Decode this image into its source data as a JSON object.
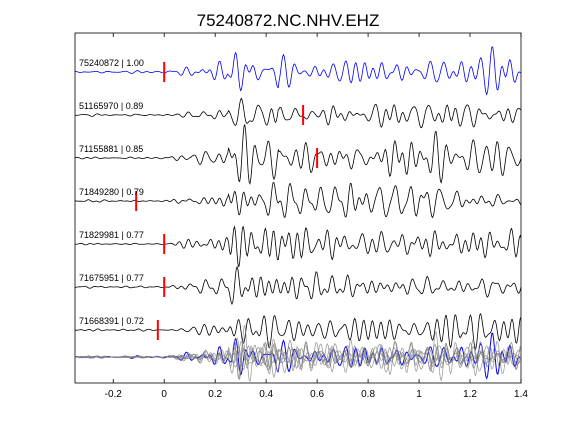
{
  "chart_data": {
    "type": "line",
    "title": "75240872.NC.NHV.EHZ",
    "xlabel": "",
    "ylabel": "",
    "xlim": [
      -0.35,
      1.4
    ],
    "x_ticks": [
      -0.2,
      0,
      0.2,
      0.4,
      0.6,
      0.8,
      1,
      1.2,
      1.4
    ],
    "x_tick_labels": [
      "-0.2",
      "0",
      "0.2",
      "0.4",
      "0.6",
      "0.8",
      "1",
      "1.2",
      "1.4"
    ],
    "grid": false,
    "colors": {
      "reference": "#0000ff",
      "trace": "#000000",
      "pick": "#ff0000",
      "stack": "#808080"
    },
    "traces": [
      {
        "label": "75240872 | 1.00",
        "pick": 0.0,
        "seed": 1
      },
      {
        "label": "51165970 | 0.89",
        "pick": 0.545,
        "seed": 2
      },
      {
        "label": "71155881 | 0.85",
        "pick": 0.6,
        "seed": 3
      },
      {
        "label": "71849280 | 0.79",
        "pick": -0.11,
        "seed": 4
      },
      {
        "label": "71829981 | 0.77",
        "pick": 0.0,
        "seed": 5
      },
      {
        "label": "71675951 | 0.77",
        "pick": 0.0,
        "seed": 6
      },
      {
        "label": "71668391 | 0.72",
        "pick": -0.025,
        "seed": 7
      }
    ],
    "overlay": {
      "label": "",
      "description_hidden": true
    }
  }
}
